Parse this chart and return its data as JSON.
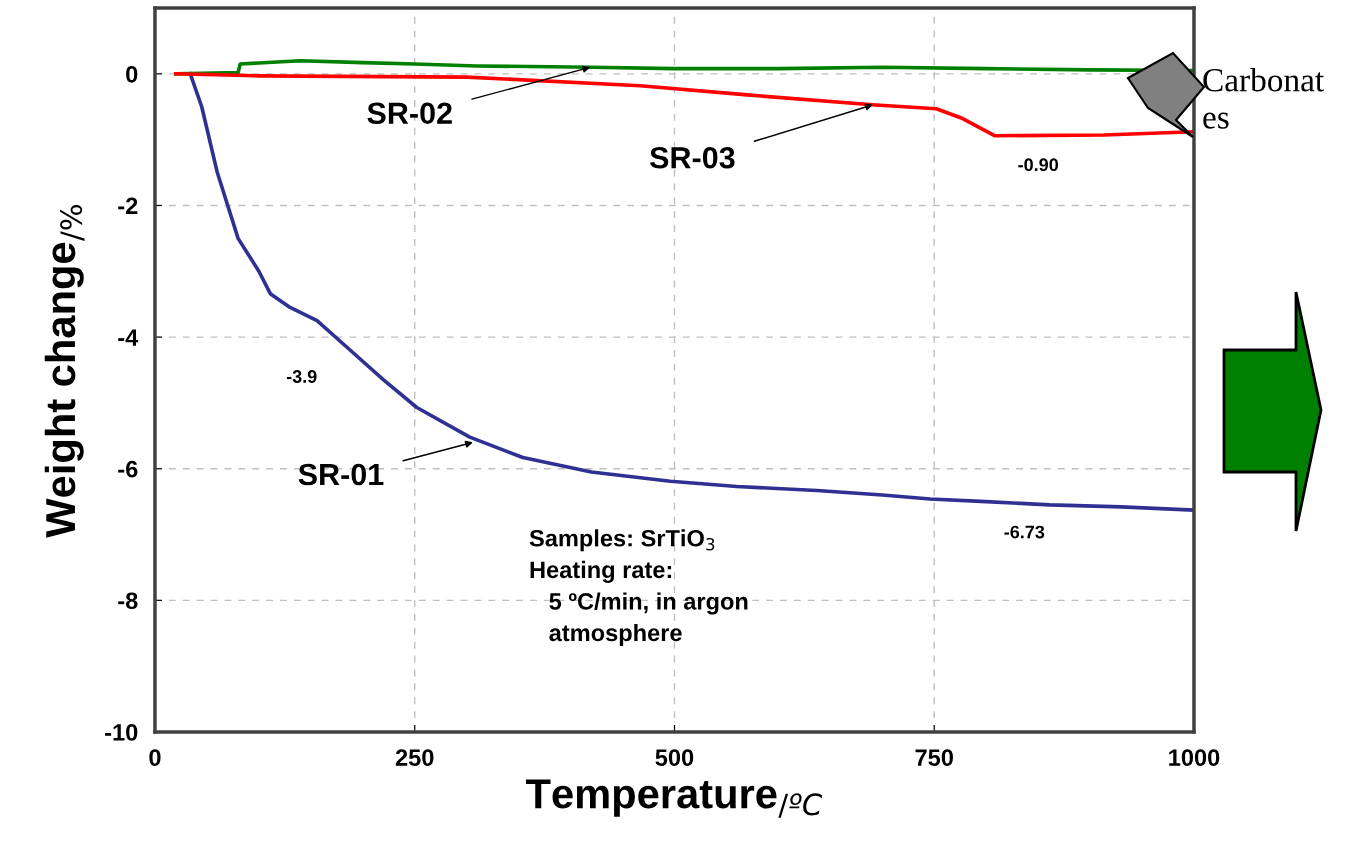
{
  "chart_data": {
    "type": "line",
    "xlabel": "Temperature$_{/ºC}$",
    "ylabel": "Weight change$_{/%}$",
    "xlim": [
      0,
      1000
    ],
    "xticks": [
      0,
      250,
      500,
      750,
      1000
    ],
    "ylim": [
      -10,
      1
    ],
    "yticks": [
      0,
      -2,
      -4,
      -6,
      -8,
      -10
    ],
    "grid": true,
    "line_style": "solid",
    "marker": "none",
    "series": [
      {
        "color": "#2e3192",
        "x": [
          34,
          45,
          60,
          80,
          100,
          111,
          130,
          156,
          188,
          220,
          252,
          303,
          354,
          420,
          496,
          560,
          637,
          700,
          746,
          800,
          861,
          930,
          1000
        ],
        "values": [
          0,
          -0.5,
          -1.5,
          -2.5,
          -3.0,
          -3.34,
          -3.55,
          -3.75,
          -4.2,
          -4.65,
          -5.07,
          -5.52,
          -5.83,
          -6.05,
          -6.19,
          -6.27,
          -6.33,
          -6.4,
          -6.46,
          -6.5,
          -6.55,
          -6.58,
          -6.63
        ]
      },
      {
        "color": "#008000",
        "x": [
          20,
          80,
          82,
          140,
          200,
          250,
          310,
          420,
          500,
          600,
          700,
          800,
          900,
          1000
        ],
        "values": [
          0,
          0.02,
          0.15,
          0.2,
          0.17,
          0.15,
          0.12,
          0.1,
          0.08,
          0.08,
          0.1,
          0.08,
          0.06,
          0.05
        ]
      },
      {
        "color": "#ff0000",
        "x": [
          20,
          100,
          300,
          467,
          570,
          690,
          752,
          776,
          808,
          913,
          1000
        ],
        "values": [
          0,
          -0.03,
          -0.05,
          -0.18,
          -0.32,
          -0.47,
          -0.53,
          -0.67,
          -0.94,
          -0.93,
          -0.88
        ]
      }
    ],
    "annotations": [
      {
        "text": "SR-01",
        "x": 306,
        "y": -5.6
      },
      {
        "text": "SR-02",
        "x": 419,
        "y": 0.1
      },
      {
        "text": "SR-03",
        "x": 691,
        "y": -0.47
      },
      {
        "text": "-3.9",
        "x": 188,
        "y": -4.2
      },
      {
        "text": "-0.90",
        "x": 830,
        "y": -0.94
      },
      {
        "text": "-6.73",
        "x": 830,
        "y": -6.5
      },
      "Samples: SrTiO$_{3}$\nHeating rate:\n   5 ºC/min, in argon\n   atmosphere",
      "Carbonat\nes"
    ]
  }
}
